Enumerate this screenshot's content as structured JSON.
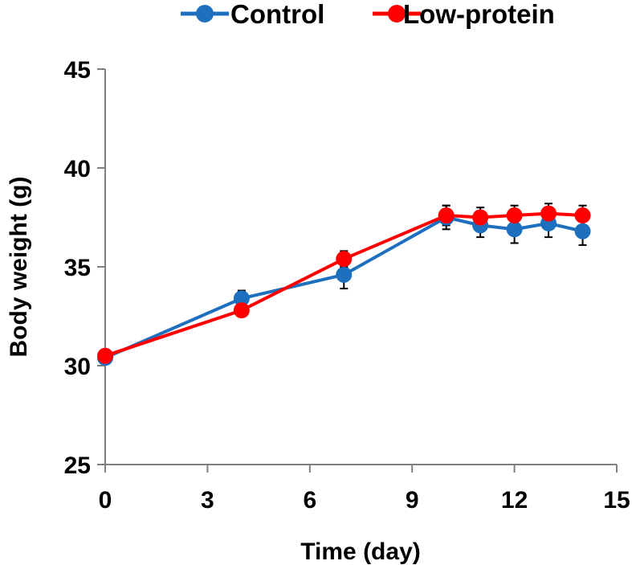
{
  "chart_data": {
    "type": "line",
    "title": "",
    "xlabel": "Time (day)",
    "ylabel": "Body weight (g)",
    "xlim": [
      0,
      15
    ],
    "ylim": [
      25,
      45
    ],
    "xticks": [
      "0",
      "3",
      "6",
      "9",
      "12",
      "15"
    ],
    "yticks": [
      "25",
      "30",
      "35",
      "40",
      "45"
    ],
    "grid": false,
    "legend_position": "top",
    "series": [
      {
        "name": "Control",
        "color": "#1f6fbf",
        "x": [
          0,
          4,
          7,
          10,
          11,
          12,
          13,
          14
        ],
        "y": [
          30.4,
          33.4,
          34.6,
          37.5,
          37.1,
          36.9,
          37.2,
          36.8
        ],
        "err": [
          0.0,
          0.4,
          0.7,
          0.6,
          0.6,
          0.7,
          0.7,
          0.7
        ]
      },
      {
        "name": "Low-protein",
        "color": "#ff0000",
        "x": [
          0,
          4,
          7,
          10,
          11,
          12,
          13,
          14
        ],
        "y": [
          30.5,
          32.8,
          35.4,
          37.6,
          37.5,
          37.6,
          37.7,
          37.6
        ],
        "err": [
          0.0,
          0.0,
          0.4,
          0.5,
          0.5,
          0.5,
          0.5,
          0.5
        ]
      }
    ]
  }
}
